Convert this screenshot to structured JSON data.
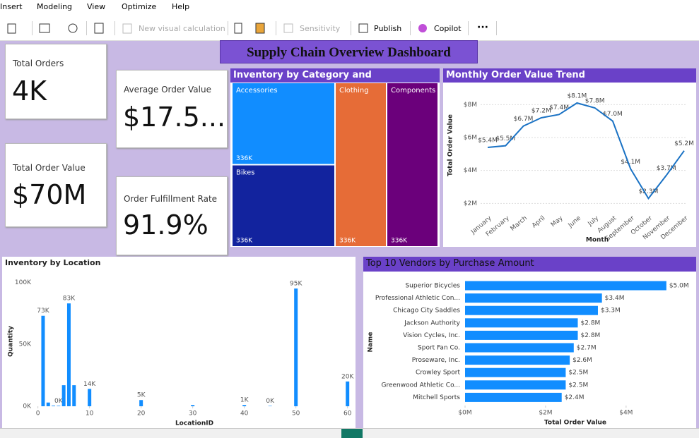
{
  "menu": [
    "Insert",
    "Modeling",
    "View",
    "Optimize",
    "Help"
  ],
  "toolbar": {
    "new_visual_calculation": "New visual calculation",
    "sensitivity": "Sensitivity",
    "publish": "Publish",
    "copilot": "Copilot",
    "more": "···"
  },
  "dashboard_title": "Supply Chain Overview Dashboard",
  "cards": [
    {
      "label": "Total Orders",
      "value": "4K"
    },
    {
      "label": "Average Order Value",
      "value": "$17.5..."
    },
    {
      "label": "Total Order Value",
      "value": "$70M"
    },
    {
      "label": "Order Fulfillment Rate",
      "value": "91.9%"
    }
  ],
  "chart_data": [
    {
      "type": "treemap",
      "title": "Inventory by Category and Subcategory",
      "categories": [
        "Accessories",
        "Bikes",
        "Clothing",
        "Components"
      ],
      "values": [
        336000,
        336000,
        336000,
        336000
      ],
      "value_labels": [
        "336K",
        "336K",
        "336K",
        "336K"
      ],
      "colors": [
        "#118dff",
        "#12239e",
        "#e66c37",
        "#6b007b"
      ]
    },
    {
      "type": "line",
      "title": "Monthly Order Value Trend",
      "x_label": "Month",
      "y_label": "Total Order Value",
      "categories": [
        "January",
        "February",
        "March",
        "April",
        "May",
        "June",
        "July",
        "August",
        "September",
        "October",
        "November",
        "December"
      ],
      "values": [
        5.4,
        5.5,
        6.7,
        7.2,
        7.4,
        8.1,
        7.8,
        7.0,
        4.1,
        2.3,
        3.7,
        5.2
      ],
      "value_labels": [
        "$5.4M",
        "$5.5M",
        "$6.7M",
        "$7.2M",
        "$7.4M",
        "$8.1M",
        "$7.8M",
        "$7.0M",
        "$4.1M",
        "$2.3M",
        "$3.7M",
        "$5.2M"
      ],
      "color": "#1a72c4",
      "ylim": [
        1.5,
        9
      ],
      "yticks": [
        {
          "value": 2,
          "label": "$2M"
        },
        {
          "value": 4,
          "label": "$4M"
        },
        {
          "value": 6,
          "label": "$6M"
        },
        {
          "value": 8,
          "label": "$8M"
        }
      ],
      "grid": true
    },
    {
      "type": "column",
      "title": "Inventory by Location",
      "x_label": "LocationID",
      "y_label": "Quantity",
      "x": [
        1,
        2,
        3,
        4,
        5,
        6,
        7,
        10,
        20,
        30,
        40,
        45,
        50,
        60
      ],
      "values": [
        73000,
        3000,
        500,
        400,
        17000,
        83000,
        17000,
        14000,
        5000,
        1000,
        1000,
        300,
        95000,
        20000
      ],
      "value_labels": [
        "73K",
        null,
        null,
        "0K",
        null,
        "83K",
        null,
        "14K",
        "5K",
        null,
        "1K",
        "0K",
        "95K",
        "20K"
      ],
      "color": "#118dff",
      "xlim": [
        -0.5,
        61
      ],
      "xticks": [
        0,
        10,
        20,
        30,
        40,
        50,
        60
      ],
      "ylim": [
        0,
        107000
      ],
      "yticks": [
        {
          "value": 0,
          "label": "0K"
        },
        {
          "value": 50000,
          "label": "50K"
        },
        {
          "value": 100000,
          "label": "100K"
        }
      ]
    },
    {
      "type": "hbar",
      "title": "Top 10 Vendors by Purchase Amount",
      "x_label": "Total Order Value",
      "y_label": "Name",
      "categories": [
        "Superior Bicycles",
        "Professional Athletic Con...",
        "Chicago City Saddles",
        "Jackson Authority",
        "Vision Cycles, Inc.",
        "Sport Fan Co.",
        "Proseware, Inc.",
        "Crowley Sport",
        "Greenwood Athletic Co...",
        "Mitchell Sports"
      ],
      "values": [
        5.0,
        3.4,
        3.3,
        2.8,
        2.8,
        2.7,
        2.6,
        2.5,
        2.5,
        2.4
      ],
      "value_labels": [
        "$5.0M",
        "$3.4M",
        "$3.3M",
        "$2.8M",
        "$2.8M",
        "$2.7M",
        "$2.6M",
        "$2.5M",
        "$2.5M",
        "$2.4M"
      ],
      "color": "#118dff",
      "xlim": [
        0,
        5.6
      ],
      "xticks": [
        {
          "value": 0,
          "label": "$0M"
        },
        {
          "value": 2,
          "label": "$2M"
        },
        {
          "value": 4,
          "label": "$4M"
        }
      ]
    }
  ]
}
